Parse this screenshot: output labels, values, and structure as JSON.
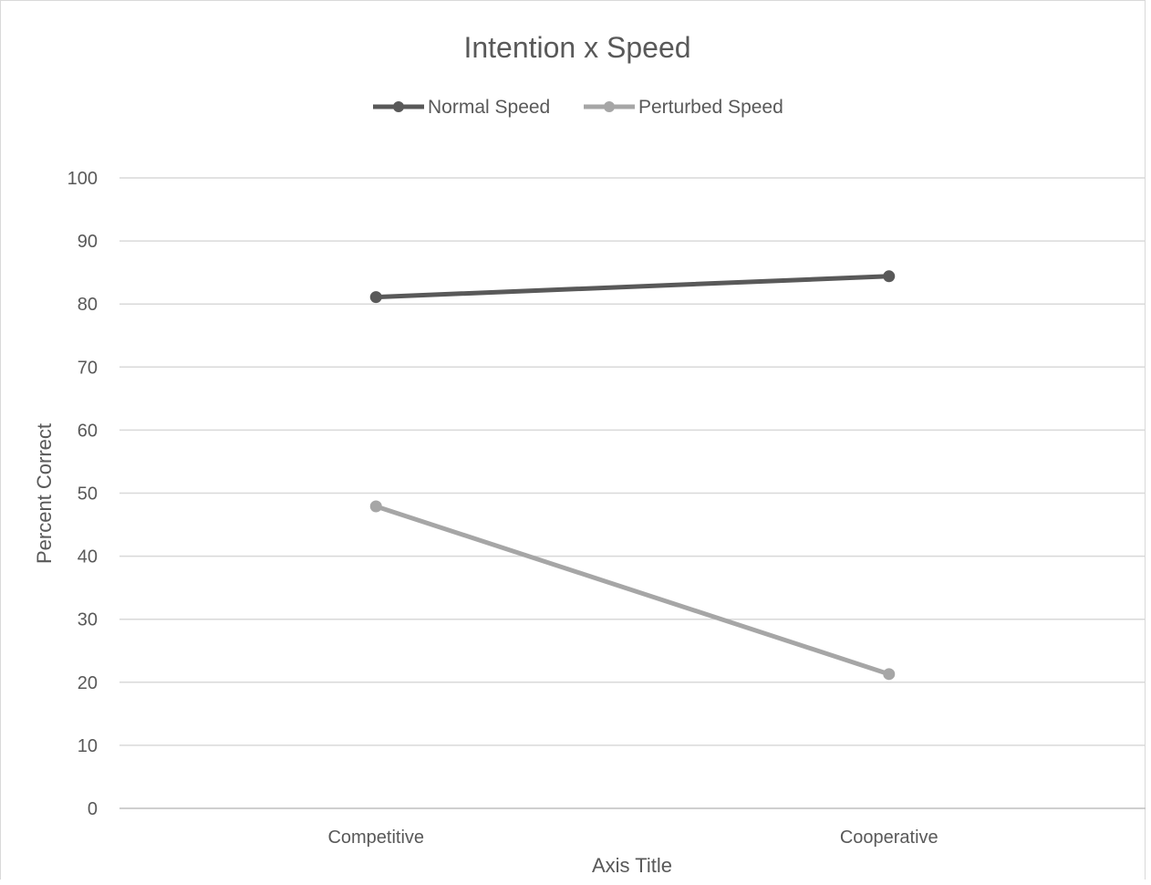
{
  "chart_data": {
    "type": "line",
    "title": "Intention x Speed",
    "xlabel": "Axis Title",
    "ylabel": "Percent Correct",
    "categories": [
      "Competitive",
      "Cooperative"
    ],
    "ylim": [
      0,
      100
    ],
    "yticks": [
      "0",
      "10",
      "20",
      "30",
      "40",
      "50",
      "60",
      "70",
      "80",
      "90",
      "100"
    ],
    "grid": true,
    "legend_position": "top",
    "series": [
      {
        "name": "Normal Speed",
        "values": [
          81.1,
          84.4
        ],
        "color": "#595959"
      },
      {
        "name": "Perturbed Speed",
        "values": [
          47.9,
          21.3
        ],
        "color": "#a6a6a6"
      }
    ]
  }
}
